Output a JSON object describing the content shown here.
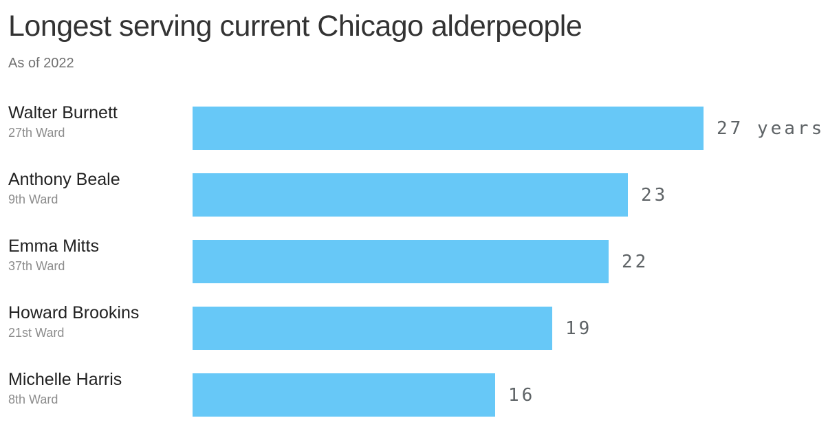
{
  "header": {
    "title": "Longest serving current Chicago alderpeople",
    "subtitle": "As of 2022"
  },
  "chart_data": {
    "type": "bar",
    "orientation": "horizontal",
    "title": "Longest serving current Chicago alderpeople",
    "subtitle": "As of 2022",
    "unit": "years",
    "xlim": [
      0,
      27
    ],
    "grid": false,
    "legend": false,
    "bar_color": "#67C8F7",
    "value_label_color": "#5e6366",
    "name_color": "#222222",
    "ward_color": "#8c8c8c",
    "categories": [
      "Walter Burnett",
      "Anthony Beale",
      "Emma Mitts",
      "Howard Brookins",
      "Michelle Harris"
    ],
    "values": [
      27,
      23,
      22,
      19,
      16
    ],
    "rows": [
      {
        "name": "Walter Burnett",
        "ward": "27th Ward",
        "value": 27,
        "value_label": "27 years"
      },
      {
        "name": "Anthony Beale",
        "ward": "9th Ward",
        "value": 23,
        "value_label": "23"
      },
      {
        "name": "Emma Mitts",
        "ward": "37th Ward",
        "value": 22,
        "value_label": "22"
      },
      {
        "name": "Howard Brookins",
        "ward": "21st Ward",
        "value": 19,
        "value_label": "19"
      },
      {
        "name": "Michelle Harris",
        "ward": "8th Ward",
        "value": 16,
        "value_label": "16"
      }
    ]
  }
}
